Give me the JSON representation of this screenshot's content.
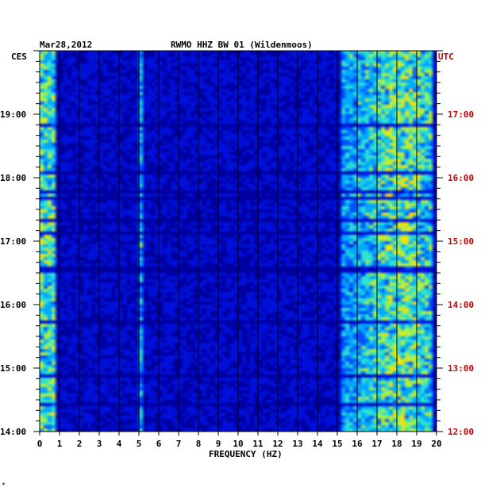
{
  "chart_data": {
    "type": "heatmap",
    "header": {
      "date": "Mar28,2012",
      "station": "RWMO HHZ BW 01 (Wildenmoos)"
    },
    "left_zone": "CES",
    "right_zone": "UTC",
    "xlabel": "FREQUENCY (HZ)",
    "xlim": [
      0,
      20
    ],
    "x_ticks": [
      "0",
      "1",
      "2",
      "3",
      "4",
      "5",
      "6",
      "7",
      "8",
      "9",
      "10",
      "11",
      "12",
      "13",
      "14",
      "15",
      "16",
      "17",
      "18",
      "19",
      "20"
    ],
    "y_range_hours": [
      14.0,
      20.0
    ],
    "left_ticks": [
      {
        "hour": 19,
        "label": "19:00"
      },
      {
        "hour": 18,
        "label": "18:00"
      },
      {
        "hour": 17,
        "label": "17:00"
      },
      {
        "hour": 16,
        "label": "16:00"
      },
      {
        "hour": 15,
        "label": "15:00"
      },
      {
        "hour": 14,
        "label": "14:00"
      }
    ],
    "right_ticks": [
      {
        "hour": 19,
        "label": "17:00"
      },
      {
        "hour": 18,
        "label": "16:00"
      },
      {
        "hour": 17,
        "label": "15:00"
      },
      {
        "hour": 16,
        "label": "14:00"
      },
      {
        "hour": 15,
        "label": "13:00"
      },
      {
        "hour": 14,
        "label": "12:00"
      }
    ],
    "colors": {
      "background": "#0000c8",
      "ces_text": "#000000",
      "utc_text": "#cc0000"
    },
    "colormap": [
      "#0000a0",
      "#0010d8",
      "#0050ff",
      "#00a8ff",
      "#30e0d0",
      "#b0f040",
      "#ffe000",
      "#ff7000",
      "#e00000"
    ],
    "features": [
      {
        "desc": "strong low-frequency band",
        "f_from": 0.0,
        "f_to": 0.8,
        "intensity": 0.55
      },
      {
        "desc": "broad high-frequency band",
        "f_from": 15.2,
        "f_to": 19.8,
        "intensity": 0.6,
        "peak_f": 18.2
      },
      {
        "desc": "narrow line",
        "f_from": 5.0,
        "f_to": 5.15,
        "intensity": 0.4
      }
    ]
  }
}
